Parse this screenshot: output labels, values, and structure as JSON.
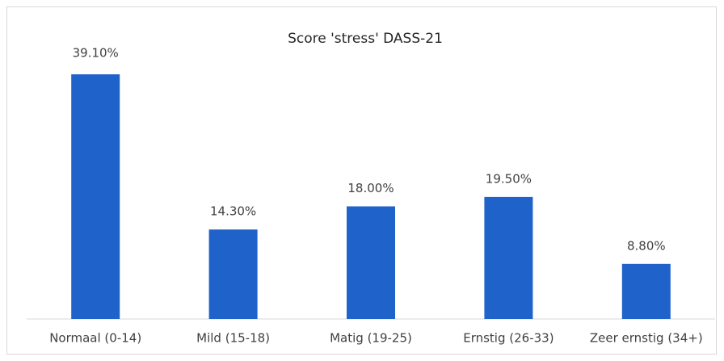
{
  "chart_data": {
    "type": "bar",
    "title": "Score 'stress' DASS-21",
    "categories": [
      "Normaal (0-14)",
      "Mild (15-18)",
      "Matig (19-25)",
      "Ernstig (26-33)",
      "Zeer ernstig (34+)"
    ],
    "values": [
      39.1,
      14.3,
      18.0,
      19.5,
      8.8
    ],
    "value_labels": [
      "39.10%",
      "14.30%",
      "18.00%",
      "19.50%",
      "8.80%"
    ],
    "color": "#1f62c9"
  }
}
